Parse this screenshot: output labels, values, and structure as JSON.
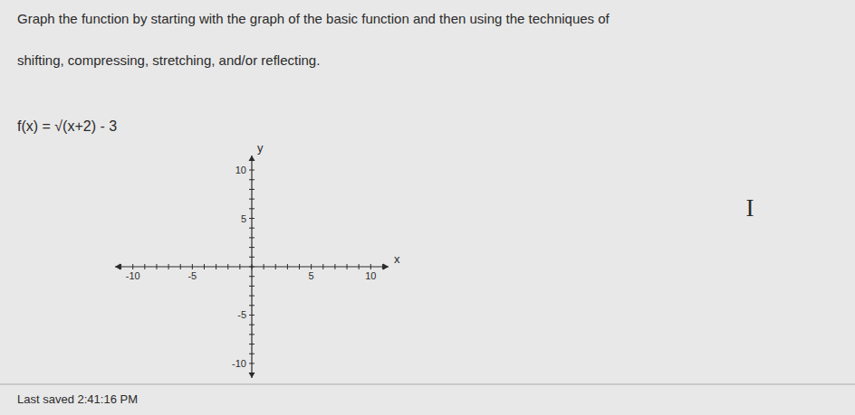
{
  "chart_data": {
    "type": "plane",
    "title": "Graph the function by starting with the graph of the basic function and then using the techniques of",
    "subtitle": "shifting, compressing, stretching, and/or reflecting.",
    "annotations": [
      "f(x) = √(x+2) - 3",
      "Last saved 2:41:16 PM",
      "I"
    ],
    "xlabel": "x",
    "ylabel": "y",
    "xlim": [
      -11.5,
      11.5
    ],
    "ylim": [
      -11.5,
      11.5
    ],
    "xticks": [
      {
        "value": -11,
        "label": null
      },
      -10,
      {
        "value": -9,
        "label": null
      },
      {
        "value": -8,
        "label": null
      },
      {
        "value": -7,
        "label": null
      },
      {
        "value": -6,
        "label": null
      },
      -5,
      {
        "value": -4,
        "label": null
      },
      {
        "value": -3,
        "label": null
      },
      {
        "value": -2,
        "label": null
      },
      {
        "value": -1,
        "label": null
      },
      {
        "value": 0,
        "label": null
      },
      {
        "value": 1,
        "label": null
      },
      {
        "value": 2,
        "label": null
      },
      {
        "value": 3,
        "label": null
      },
      {
        "value": 4,
        "label": null
      },
      5,
      {
        "value": 6,
        "label": null
      },
      {
        "value": 7,
        "label": null
      },
      {
        "value": 8,
        "label": null
      },
      {
        "value": 9,
        "label": null
      },
      10,
      {
        "value": 11,
        "label": null
      }
    ],
    "yticks": [
      {
        "value": -11,
        "label": null
      },
      -10,
      {
        "value": -9,
        "label": null
      },
      {
        "value": -8,
        "label": null
      },
      {
        "value": -7,
        "label": null
      },
      {
        "value": -6,
        "label": null
      },
      -5,
      {
        "value": -4,
        "label": null
      },
      {
        "value": -3,
        "label": null
      },
      {
        "value": -2,
        "label": null
      },
      {
        "value": -1,
        "label": null
      },
      {
        "value": 0,
        "label": null
      },
      {
        "value": 1,
        "label": null
      },
      {
        "value": 2,
        "label": null
      },
      {
        "value": 3,
        "label": null
      },
      {
        "value": 4,
        "label": null
      },
      5,
      {
        "value": 6,
        "label": null
      },
      {
        "value": 7,
        "label": null
      },
      {
        "value": 8,
        "label": null
      },
      {
        "value": 9,
        "label": null
      },
      10,
      {
        "value": 11,
        "label": null
      }
    ],
    "grid": false,
    "color": "#2b2b2b"
  }
}
